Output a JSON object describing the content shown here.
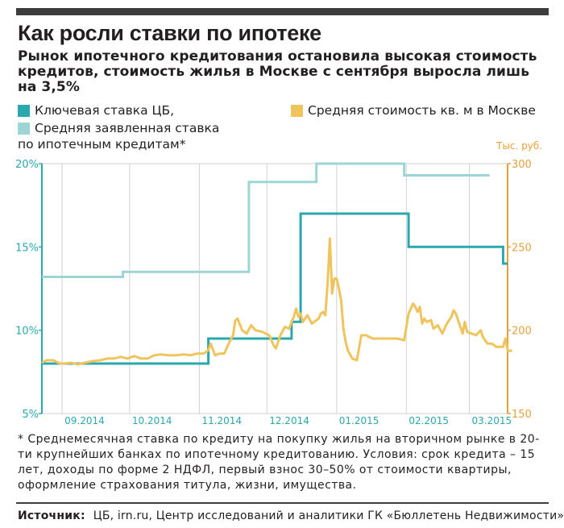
{
  "title": "Как росли ставки по ипотеке",
  "subtitle": "Рынок ипотечного кредитования остановила высокая стоимость кредитов,  стоимость жилья в Москве с сентября выросла лишь на 3,5%",
  "legend": {
    "key_rate": "Ключевая ставка ЦБ,",
    "avg_rate_line1": "Средняя заявленная ставка",
    "avg_rate_line2": "по ипотечным кредитам*",
    "price": "Средняя стоимость кв. м в Москве"
  },
  "colors": {
    "key_rate": "#2aa8ad",
    "avg_rate": "#9dd5d4",
    "price": "#f0c45c",
    "axis_left": "#2aa8ad",
    "axis_right": "#e8a13a"
  },
  "right_unit": "Тыс. руб.",
  "footnote": "* Среднемесячная ставка по кредиту на покупку жилья на вторичном рынке в 20-ти крупнейших банках по ипотечному кредитованию. Условия: срок кредита – 15 лет, доходы по форме 2 НДФЛ, первый взнос 30–50% от стоимости квартиры, оформление страхования титула, жизни, имущества.",
  "source_label": "Источник:",
  "source_text": "ЦБ,  irn.ru, Центр исследований и аналитики ГК «Бюллетень Недвижимости»",
  "chart_data": {
    "type": "line",
    "x_range": [
      "2014-08-23",
      "2015-03-18"
    ],
    "x_ticks": [
      {
        "date": "2014-09-01",
        "label": "09.2014"
      },
      {
        "date": "2014-10-01",
        "label": "10.2014"
      },
      {
        "date": "2014-11-01",
        "label": "11.2014"
      },
      {
        "date": "2014-12-01",
        "label": "12.2014"
      },
      {
        "date": "2015-01-01",
        "label": "01.2015"
      },
      {
        "date": "2015-02-01",
        "label": "02.2015"
      },
      {
        "date": "2015-03-01",
        "label": "03.2015"
      }
    ],
    "y_left": {
      "range": [
        5,
        20
      ],
      "ticks": [
        5,
        10,
        15,
        20
      ],
      "tick_labels": [
        "5%",
        "10%",
        "15%",
        "20%"
      ]
    },
    "y_right": {
      "range": [
        150,
        300
      ],
      "ticks": [
        150,
        200,
        250,
        300
      ],
      "tick_labels": [
        "150",
        "200",
        "250",
        "300"
      ]
    },
    "grid": "vertical",
    "series": [
      {
        "name": "Ключевая ставка ЦБ,",
        "axis": "left",
        "step": true,
        "points": [
          [
            "2014-08-23",
            8.0
          ],
          [
            "2014-11-05",
            8.0
          ],
          [
            "2014-11-05",
            9.5
          ],
          [
            "2014-12-12",
            9.5
          ],
          [
            "2014-12-12",
            10.5
          ],
          [
            "2014-12-16",
            10.5
          ],
          [
            "2014-12-16",
            17.0
          ],
          [
            "2015-02-02",
            17.0
          ],
          [
            "2015-02-02",
            15.0
          ],
          [
            "2015-03-16",
            15.0
          ],
          [
            "2015-03-16",
            14.0
          ],
          [
            "2015-03-18",
            14.0
          ]
        ]
      },
      {
        "name": "Средняя заявленная ставка по ипотечным кредитам*",
        "axis": "left",
        "step": true,
        "points": [
          [
            "2014-08-23",
            13.2
          ],
          [
            "2014-09-28",
            13.2
          ],
          [
            "2014-09-28",
            13.5
          ],
          [
            "2014-11-01",
            13.5
          ],
          [
            "2014-11-01",
            13.5
          ],
          [
            "2014-11-23",
            13.5
          ],
          [
            "2014-11-23",
            13.8
          ],
          [
            "2014-11-23",
            18.9
          ],
          [
            "2014-12-23",
            18.9
          ],
          [
            "2014-12-23",
            20.0
          ],
          [
            "2015-01-31",
            20.0
          ],
          [
            "2015-01-31",
            19.3
          ],
          [
            "2015-03-10",
            19.3
          ]
        ]
      },
      {
        "name": "Средняя стоимость кв. м в Москве",
        "axis": "right",
        "points": [
          [
            "2014-08-23",
            180.5
          ],
          [
            "2014-08-25",
            182
          ],
          [
            "2014-08-28",
            182
          ],
          [
            "2014-08-31",
            180
          ],
          [
            "2014-09-02",
            180
          ],
          [
            "2014-09-05",
            180.5
          ],
          [
            "2014-09-08",
            179.5
          ],
          [
            "2014-09-11",
            180.5
          ],
          [
            "2014-09-15",
            181.5
          ],
          [
            "2014-09-18",
            182
          ],
          [
            "2014-09-21",
            183
          ],
          [
            "2014-09-24",
            183
          ],
          [
            "2014-09-27",
            184
          ],
          [
            "2014-09-30",
            183
          ],
          [
            "2014-10-03",
            184.5
          ],
          [
            "2014-10-06",
            183
          ],
          [
            "2014-10-09",
            183
          ],
          [
            "2014-10-12",
            185
          ],
          [
            "2014-10-15",
            185.5
          ],
          [
            "2014-10-18",
            185
          ],
          [
            "2014-10-22",
            185
          ],
          [
            "2014-10-25",
            185.5
          ],
          [
            "2014-10-28",
            185
          ],
          [
            "2014-10-31",
            186
          ],
          [
            "2014-11-03",
            186
          ],
          [
            "2014-11-05",
            188
          ],
          [
            "2014-11-06",
            192
          ],
          [
            "2014-11-08",
            185
          ],
          [
            "2014-11-10",
            186
          ],
          [
            "2014-11-12",
            186
          ],
          [
            "2014-11-14",
            192
          ],
          [
            "2014-11-16",
            197
          ],
          [
            "2014-11-17",
            206
          ],
          [
            "2014-11-18",
            207
          ],
          [
            "2014-11-20",
            200
          ],
          [
            "2014-11-22",
            198
          ],
          [
            "2014-11-24",
            203
          ],
          [
            "2014-11-26",
            200
          ],
          [
            "2014-11-29",
            199
          ],
          [
            "2014-12-02",
            197
          ],
          [
            "2014-12-04",
            191
          ],
          [
            "2014-12-05",
            189
          ],
          [
            "2014-12-07",
            197
          ],
          [
            "2014-12-09",
            202
          ],
          [
            "2014-12-11",
            201
          ],
          [
            "2014-12-12",
            205
          ],
          [
            "2014-12-13",
            208
          ],
          [
            "2014-12-14",
            213
          ],
          [
            "2014-12-15",
            208
          ],
          [
            "2014-12-16",
            210
          ],
          [
            "2014-12-17",
            205
          ],
          [
            "2014-12-19",
            209
          ],
          [
            "2014-12-21",
            204
          ],
          [
            "2014-12-22",
            205
          ],
          [
            "2014-12-24",
            207
          ],
          [
            "2014-12-25",
            210
          ],
          [
            "2014-12-26",
            211
          ],
          [
            "2014-12-27",
            209
          ],
          [
            "2014-12-28",
            228
          ],
          [
            "2014-12-29",
            255
          ],
          [
            "2014-12-30",
            222
          ],
          [
            "2014-12-31",
            231
          ],
          [
            "2015-01-01",
            231
          ],
          [
            "2015-01-02",
            225
          ],
          [
            "2015-01-03",
            218
          ],
          [
            "2015-01-04",
            201
          ],
          [
            "2015-01-05",
            193
          ],
          [
            "2015-01-06",
            188
          ],
          [
            "2015-01-08",
            183
          ],
          [
            "2015-01-10",
            182
          ],
          [
            "2015-01-12",
            197
          ],
          [
            "2015-01-14",
            197
          ],
          [
            "2015-01-17",
            195
          ],
          [
            "2015-01-20",
            195
          ],
          [
            "2015-01-24",
            195
          ],
          [
            "2015-01-28",
            195
          ],
          [
            "2015-01-31",
            194
          ],
          [
            "2015-02-02",
            210
          ],
          [
            "2015-02-04",
            216
          ],
          [
            "2015-02-05",
            214
          ],
          [
            "2015-02-06",
            211
          ],
          [
            "2015-02-07",
            214
          ],
          [
            "2015-02-08",
            204
          ],
          [
            "2015-02-09",
            207
          ],
          [
            "2015-02-10",
            205
          ],
          [
            "2015-02-12",
            206
          ],
          [
            "2015-02-13",
            201
          ],
          [
            "2015-02-15",
            203
          ],
          [
            "2015-02-17",
            198
          ],
          [
            "2015-02-19",
            204
          ],
          [
            "2015-02-21",
            208
          ],
          [
            "2015-02-22",
            212
          ],
          [
            "2015-02-23",
            210
          ],
          [
            "2015-02-24",
            206
          ],
          [
            "2015-02-26",
            198
          ],
          [
            "2015-02-27",
            205
          ],
          [
            "2015-02-28",
            199
          ],
          [
            "2015-03-02",
            198
          ],
          [
            "2015-03-04",
            197
          ],
          [
            "2015-03-06",
            200
          ],
          [
            "2015-03-07",
            196
          ],
          [
            "2015-03-08",
            194
          ],
          [
            "2015-03-09",
            192
          ],
          [
            "2015-03-11",
            192
          ],
          [
            "2015-03-13",
            190
          ],
          [
            "2015-03-15",
            190
          ],
          [
            "2015-03-16",
            190
          ],
          [
            "2015-03-17",
            195
          ],
          [
            "2015-03-18",
            188
          ],
          [
            "2015-03-19",
            187.5
          ],
          [
            "2015-03-20",
            188
          ]
        ]
      }
    ]
  }
}
